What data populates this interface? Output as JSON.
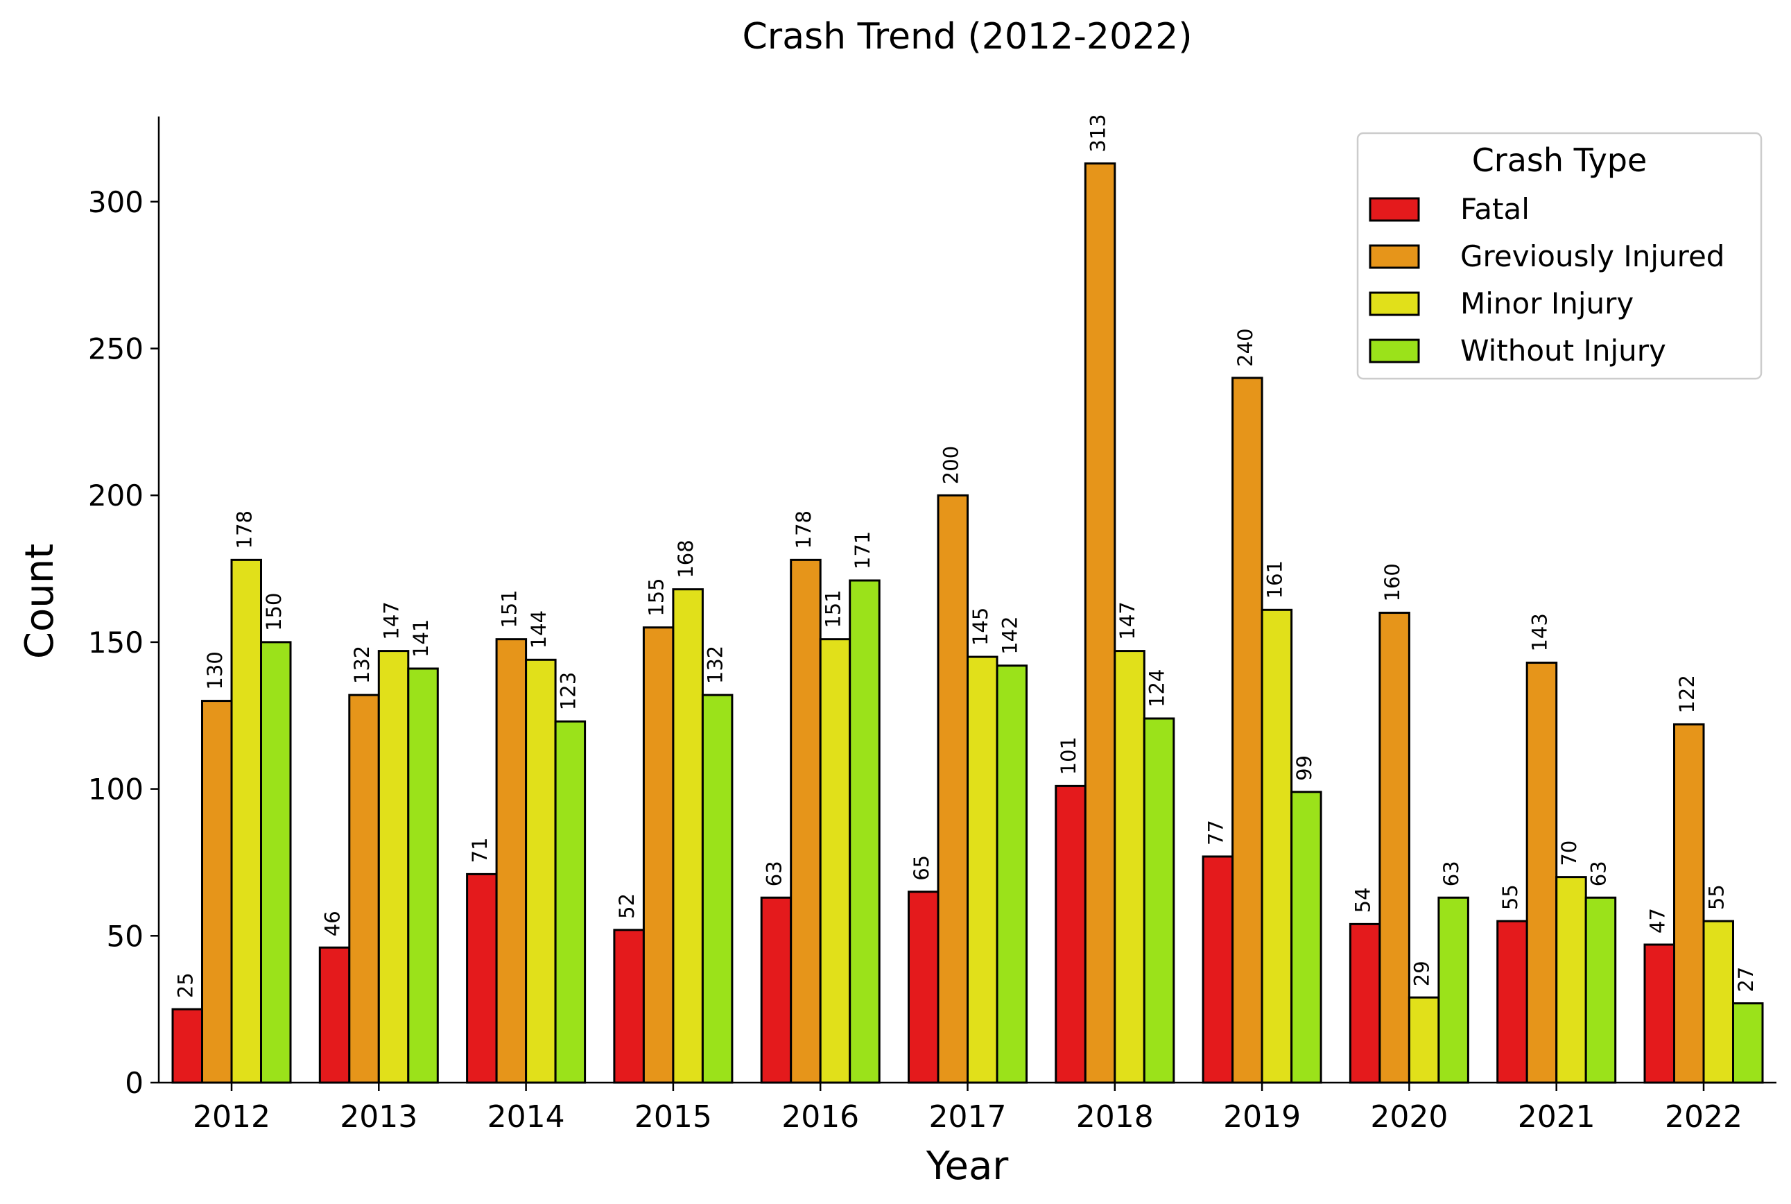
{
  "chart_data": {
    "type": "bar",
    "title": "Crash Trend (2012-2022)",
    "xlabel": "Year",
    "ylabel": "Count",
    "categories": [
      "2012",
      "2013",
      "2014",
      "2015",
      "2016",
      "2017",
      "2018",
      "2019",
      "2020",
      "2021",
      "2022"
    ],
    "ylim": [
      0,
      329
    ],
    "yticks": [
      0,
      50,
      100,
      150,
      200,
      250,
      300
    ],
    "grid": false,
    "legend": {
      "title": "Crash Type",
      "placement": "top-right"
    },
    "series": [
      {
        "name": "Fatal",
        "color": "#e41a1c",
        "values": [
          25,
          46,
          71,
          52,
          63,
          65,
          101,
          77,
          54,
          55,
          47
        ]
      },
      {
        "name": "Greviously Injured",
        "color": "#e6951a",
        "values": [
          130,
          132,
          151,
          155,
          178,
          200,
          313,
          240,
          160,
          143,
          122
        ]
      },
      {
        "name": "Minor Injury",
        "color": "#e1e01a",
        "values": [
          178,
          147,
          144,
          168,
          151,
          145,
          147,
          161,
          29,
          70,
          55
        ]
      },
      {
        "name": "Without Injury",
        "color": "#9be21a",
        "values": [
          150,
          141,
          123,
          132,
          171,
          142,
          124,
          99,
          63,
          63,
          27
        ]
      }
    ]
  }
}
